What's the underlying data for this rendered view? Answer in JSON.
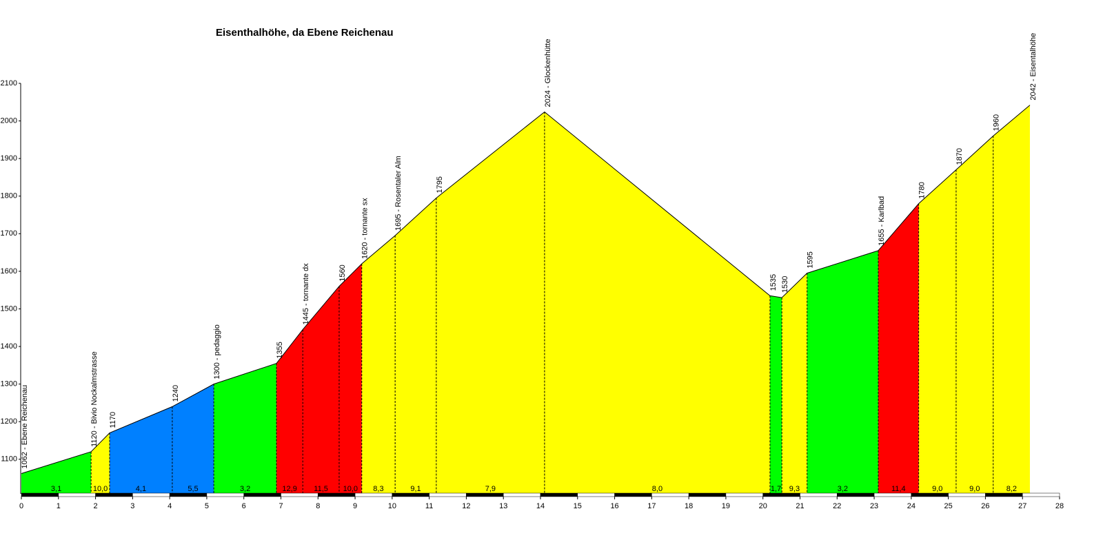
{
  "chart_data": {
    "type": "profile",
    "title": "Eisenthalhöhe, da Ebene Reichenau",
    "x": [
      0,
      1.88,
      2.38,
      4.07,
      5.19,
      6.88,
      7.59,
      8.57,
      9.18,
      10.08,
      11.19,
      14.11,
      20.19,
      20.51,
      21.19,
      23.11,
      24.2,
      25.21,
      26.21,
      27.2
    ],
    "values": [
      1062,
      1120,
      1170,
      1240,
      1300,
      1355,
      1445,
      1560,
      1620,
      1695,
      1795,
      2024,
      1535,
      1530,
      1595,
      1655,
      1780,
      1870,
      1960,
      2042
    ],
    "point_labels": [
      "1062 - Ebene Reichenau",
      "1120 - Bivio Nockalmstrasse",
      "1170",
      "1240",
      "1300 - pedaggio",
      "1355",
      "1445 - tornante dx",
      "1560",
      "1620 - tornante sx",
      "1695 - Rosentaler Alm",
      "1795",
      "2024 - Glockenhütte",
      "1535",
      "1530",
      "1595",
      "1655 - Karlbad",
      "1780",
      "1870",
      "1960",
      "2042 - Eisentalhöhe"
    ],
    "segments": {
      "values": [
        3.1,
        10.0,
        4.1,
        5.5,
        3.2,
        12.9,
        11.5,
        10.0,
        8.3,
        9.1,
        7.9,
        8.0,
        1.7,
        9.3,
        3.2,
        11.4,
        9.0,
        9.0,
        8.2
      ],
      "value_labels": [
        "3,1",
        "10,0",
        "4,1",
        "5,5",
        "3,2",
        "12,9",
        "11,5",
        "10,0",
        "8,3",
        "9,1",
        "7,9",
        "8,0",
        "1,7",
        "9,3",
        "3,2",
        "11,4",
        "9,0",
        "9,0",
        "8,2"
      ],
      "colors": [
        "#00ff00",
        "#ffff00",
        "#0080ff",
        "#0080ff",
        "#00ff00",
        "#ff0000",
        "#ff0000",
        "#ff0000",
        "#ffff00",
        "#ffff00",
        "#ffff00",
        "#ffff00",
        "#00ff00",
        "#ffff00",
        "#00ff00",
        "#ff0000",
        "#ffff00",
        "#ffff00",
        "#ffff00"
      ]
    },
    "xlim": [
      0,
      28
    ],
    "xticks": [
      0,
      1,
      2,
      3,
      4,
      5,
      6,
      7,
      8,
      9,
      10,
      11,
      12,
      13,
      14,
      15,
      16,
      17,
      18,
      19,
      20,
      21,
      22,
      23,
      24,
      25,
      26,
      27,
      28
    ],
    "ylim": [
      1008,
      2100
    ],
    "yticks": [
      1100,
      1200,
      1300,
      1400,
      1500,
      1600,
      1700,
      1800,
      1900,
      2000,
      2100
    ]
  }
}
